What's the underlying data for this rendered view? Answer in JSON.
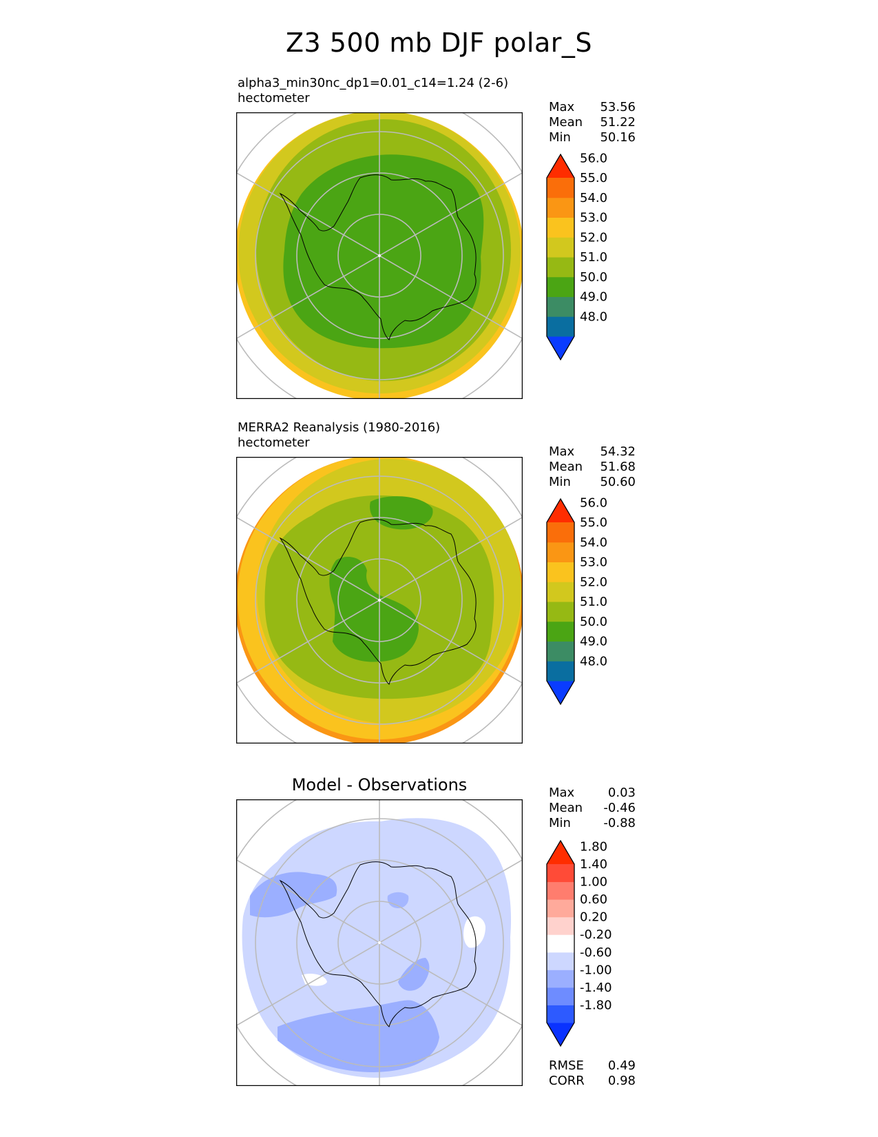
{
  "title": "Z3 500 mb DJF polar_S",
  "panels": [
    {
      "name": "model",
      "title_lines": [
        "alpha3_min30nc_dp1=0.01_c14=1.24 (2-6)",
        "hectometer"
      ],
      "stats": [
        {
          "label": "Max",
          "value": "53.56"
        },
        {
          "label": "Mean",
          "value": "51.22"
        },
        {
          "label": "Min",
          "value": "50.16"
        }
      ],
      "colorbar": {
        "colors": [
          "#0a3cff",
          "#0a6ea0",
          "#3c8c64",
          "#4ba514",
          "#96b914",
          "#d2c81e",
          "#fac31e",
          "#fa9614",
          "#fa6e0a",
          "#ff2d00"
        ],
        "labels": [
          "48.0",
          "49.0",
          "50.0",
          "51.0",
          "52.0",
          "53.0",
          "54.0",
          "55.0",
          "56.0"
        ]
      }
    },
    {
      "name": "obs",
      "title_lines": [
        "MERRA2 Reanalysis (1980-2016)",
        "hectometer"
      ],
      "stats": [
        {
          "label": "Max",
          "value": "54.32"
        },
        {
          "label": "Mean",
          "value": "51.68"
        },
        {
          "label": "Min",
          "value": "50.60"
        }
      ],
      "colorbar": {
        "colors": [
          "#0a3cff",
          "#0a6ea0",
          "#3c8c64",
          "#4ba514",
          "#96b914",
          "#d2c81e",
          "#fac31e",
          "#fa9614",
          "#fa6e0a",
          "#ff2d00"
        ],
        "labels": [
          "48.0",
          "49.0",
          "50.0",
          "51.0",
          "52.0",
          "53.0",
          "54.0",
          "55.0",
          "56.0"
        ]
      }
    },
    {
      "name": "diff",
      "title": "Model - Observations",
      "stats": [
        {
          "label": "Max",
          "value": "0.03"
        },
        {
          "label": "Mean",
          "value": "-0.46"
        },
        {
          "label": "Min",
          "value": "-0.88"
        }
      ],
      "colorbar": {
        "colors": [
          "#0a32ff",
          "#2d5aff",
          "#6e8cff",
          "#9bafff",
          "#cdd7ff",
          "#ffffff",
          "#ffd2cd",
          "#ffaa9b",
          "#ff7d6e",
          "#ff4b37",
          "#ff2d00"
        ],
        "labels": [
          "-1.80",
          "-1.40",
          "-1.00",
          "-0.60",
          "-0.20",
          "0.20",
          "0.60",
          "1.00",
          "1.40",
          "1.80"
        ]
      },
      "metrics": [
        {
          "label": "RMSE",
          "value": "0.49"
        },
        {
          "label": "CORR",
          "value": "0.98"
        }
      ]
    }
  ]
}
